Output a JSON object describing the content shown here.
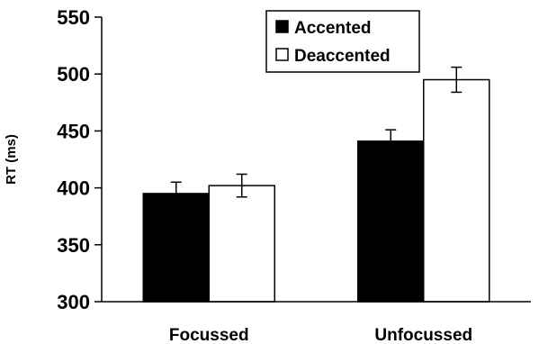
{
  "chart_data": {
    "type": "bar",
    "title": "",
    "xlabel": "",
    "ylabel": "RT (ms)",
    "ylim": [
      300,
      550
    ],
    "yticks": [
      300,
      350,
      400,
      450,
      500,
      550
    ],
    "grid": false,
    "legend_position": "top-center",
    "categories": [
      "Focussed",
      "Unfocussed"
    ],
    "series": [
      {
        "name": "Accented",
        "fill": "#000000",
        "values": [
          395,
          441
        ],
        "errors": [
          10,
          10
        ]
      },
      {
        "name": "Deaccented",
        "fill": "#ffffff",
        "values": [
          402,
          495
        ],
        "errors": [
          10,
          11
        ]
      }
    ]
  }
}
